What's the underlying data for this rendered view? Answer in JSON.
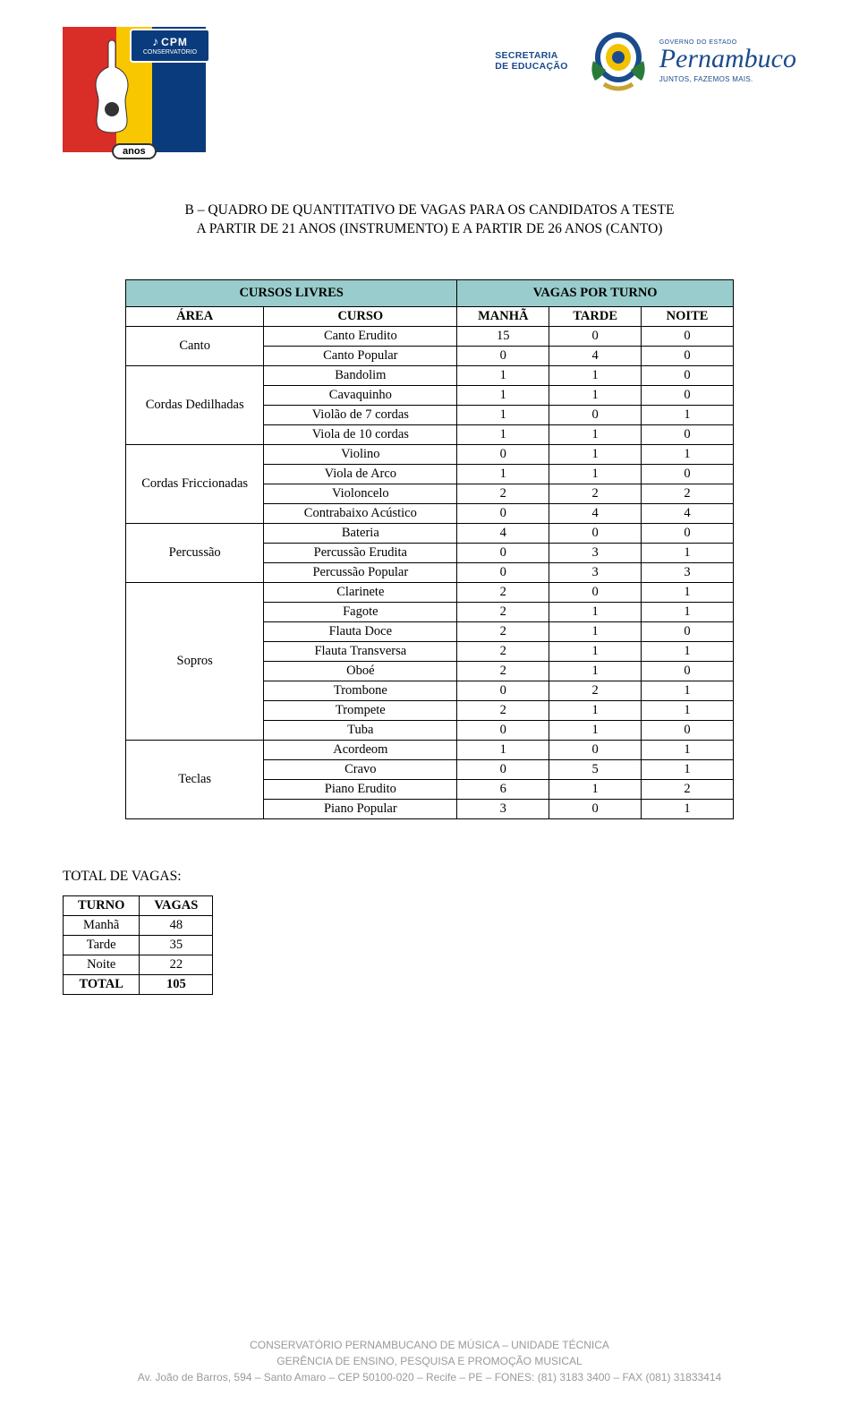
{
  "header": {
    "cpm_label": "CPM",
    "cpm_sub": "CONSERVATÓRIO",
    "anos": "anos",
    "sec_line1": "SECRETARIA",
    "sec_line2": "DE EDUCAÇÃO",
    "gov_line": "GOVERNO DO ESTADO",
    "state": "Pernambuco",
    "slogan": "JUNTOS, FAZEMOS MAIS."
  },
  "title": {
    "line1": "B – QUADRO DE QUANTITATIVO DE VAGAS PARA OS CANDIDATOS A TESTE",
    "line2": "A PARTIR DE 21 ANOS (INSTRUMENTO) E A PARTIR DE 26 ANOS (CANTO)"
  },
  "table": {
    "header_left": "CURSOS LIVRES",
    "header_right": "VAGAS POR TURNO",
    "col_area": "ÁREA",
    "col_curso": "CURSO",
    "col_manha": "MANHÃ",
    "col_tarde": "TARDE",
    "col_noite": "NOITE",
    "header_bg": "#99cccc",
    "border_color": "#000000",
    "groups": [
      {
        "area": "Canto",
        "rows": [
          {
            "curso": "Canto Erudito",
            "m": 15,
            "t": 0,
            "n": 0
          },
          {
            "curso": "Canto Popular",
            "m": 0,
            "t": 4,
            "n": 0
          }
        ]
      },
      {
        "area": "Cordas Dedilhadas",
        "rows": [
          {
            "curso": "Bandolim",
            "m": 1,
            "t": 1,
            "n": 0
          },
          {
            "curso": "Cavaquinho",
            "m": 1,
            "t": 1,
            "n": 0
          },
          {
            "curso": "Violão de 7 cordas",
            "m": 1,
            "t": 0,
            "n": 1
          },
          {
            "curso": "Viola de 10 cordas",
            "m": 1,
            "t": 1,
            "n": 0
          }
        ]
      },
      {
        "area": "Cordas Friccionadas",
        "rows": [
          {
            "curso": "Violino",
            "m": 0,
            "t": 1,
            "n": 1
          },
          {
            "curso": "Viola de Arco",
            "m": 1,
            "t": 1,
            "n": 0
          },
          {
            "curso": "Violoncelo",
            "m": 2,
            "t": 2,
            "n": 2
          },
          {
            "curso": "Contrabaixo Acústico",
            "m": 0,
            "t": 4,
            "n": 4
          }
        ]
      },
      {
        "area": "Percussão",
        "rows": [
          {
            "curso": "Bateria",
            "m": 4,
            "t": 0,
            "n": 0
          },
          {
            "curso": "Percussão Erudita",
            "m": 0,
            "t": 3,
            "n": 1
          },
          {
            "curso": "Percussão Popular",
            "m": 0,
            "t": 3,
            "n": 3
          }
        ]
      },
      {
        "area": "Sopros",
        "rows": [
          {
            "curso": "Clarinete",
            "m": 2,
            "t": 0,
            "n": 1
          },
          {
            "curso": "Fagote",
            "m": 2,
            "t": 1,
            "n": 1
          },
          {
            "curso": "Flauta Doce",
            "m": 2,
            "t": 1,
            "n": 0
          },
          {
            "curso": "Flauta Transversa",
            "m": 2,
            "t": 1,
            "n": 1
          },
          {
            "curso": "Oboé",
            "m": 2,
            "t": 1,
            "n": 0
          },
          {
            "curso": "Trombone",
            "m": 0,
            "t": 2,
            "n": 1
          },
          {
            "curso": "Trompete",
            "m": 2,
            "t": 1,
            "n": 1
          },
          {
            "curso": "Tuba",
            "m": 0,
            "t": 1,
            "n": 0
          }
        ]
      },
      {
        "area": "Teclas",
        "rows": [
          {
            "curso": "Acordeom",
            "m": 1,
            "t": 0,
            "n": 1
          },
          {
            "curso": "Cravo",
            "m": 0,
            "t": 5,
            "n": 1
          },
          {
            "curso": "Piano Erudito",
            "m": 6,
            "t": 1,
            "n": 2
          },
          {
            "curso": "Piano Popular",
            "m": 3,
            "t": 0,
            "n": 1
          }
        ]
      }
    ]
  },
  "totals": {
    "label": "TOTAL DE VAGAS:",
    "col_turno": "TURNO",
    "col_vagas": "VAGAS",
    "rows": [
      {
        "turno": "Manhã",
        "vagas": 48
      },
      {
        "turno": "Tarde",
        "vagas": 35
      },
      {
        "turno": "Noite",
        "vagas": 22
      },
      {
        "turno": "TOTAL",
        "vagas": 105
      }
    ]
  },
  "footer": {
    "line1": "CONSERVATÓRIO PERNAMBUCANO DE MÚSICA – UNIDADE TÉCNICA",
    "line2": "GERÊNCIA DE ENSINO, PESQUISA E PROMOÇÃO MUSICAL",
    "line3": "Av. João de Barros, 594 – Santo Amaro – CEP 50100-020 – Recife – PE – FONES: (81) 3183 3400 – FAX (081) 31833414"
  }
}
